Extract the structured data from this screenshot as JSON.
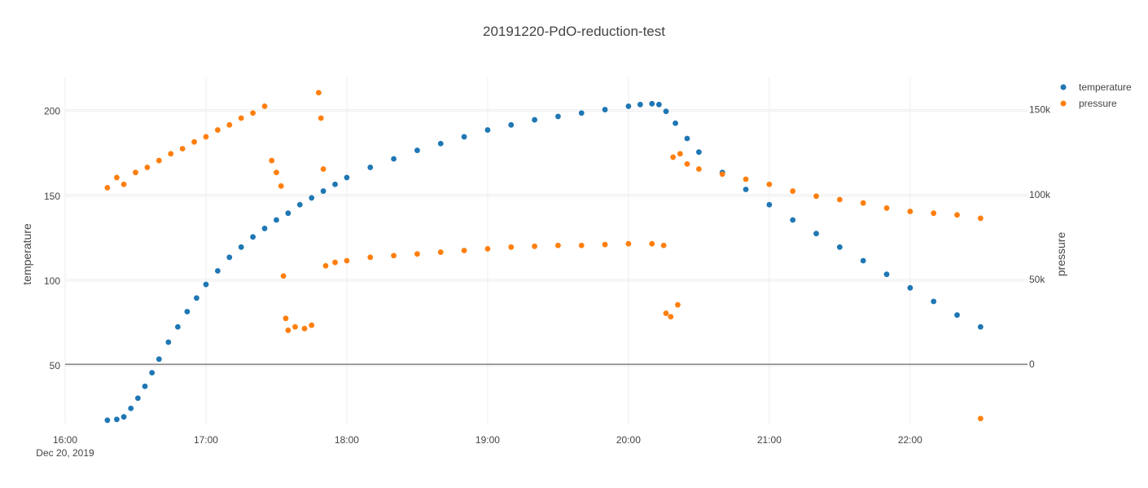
{
  "chart_data": {
    "type": "scatter",
    "title": "20191220-PdO-reduction-test",
    "xlabel": "",
    "ylabel": "temperature",
    "y2label": "pressure",
    "xlim": [
      "2019-12-20 16:00",
      "2019-12-20 22:50"
    ],
    "ylim": [
      16,
      220
    ],
    "y2lim": [
      -35000,
      169000
    ],
    "x_ticks": [
      {
        "value": "2019-12-20 16:00",
        "label": "16:00",
        "sublabel": "Dec 20, 2019"
      },
      {
        "value": "2019-12-20 17:00",
        "label": "17:00"
      },
      {
        "value": "2019-12-20 18:00",
        "label": "18:00"
      },
      {
        "value": "2019-12-20 19:00",
        "label": "19:00"
      },
      {
        "value": "2019-12-20 20:00",
        "label": "20:00"
      },
      {
        "value": "2019-12-20 21:00",
        "label": "21:00"
      },
      {
        "value": "2019-12-20 22:00",
        "label": "22:00"
      }
    ],
    "y_ticks": [
      {
        "value": 50,
        "label": "50"
      },
      {
        "value": 100,
        "label": "100"
      },
      {
        "value": 150,
        "label": "150"
      },
      {
        "value": 200,
        "label": "200"
      }
    ],
    "y2_ticks": [
      {
        "value": 0,
        "label": "0"
      },
      {
        "value": 50000,
        "label": "50k"
      },
      {
        "value": 100000,
        "label": "100k"
      },
      {
        "value": 150000,
        "label": "150k"
      }
    ],
    "grid": true,
    "legend_position": "top-right",
    "series": [
      {
        "name": "temperature",
        "axis": "y",
        "color": "#1f77b4",
        "points": [
          [
            "2019-12-20 16:18",
            18
          ],
          [
            "2019-12-20 16:22",
            18.5
          ],
          [
            "2019-12-20 16:25",
            20
          ],
          [
            "2019-12-20 16:28",
            25
          ],
          [
            "2019-12-20 16:31",
            31
          ],
          [
            "2019-12-20 16:34",
            38
          ],
          [
            "2019-12-20 16:37",
            46
          ],
          [
            "2019-12-20 16:40",
            54
          ],
          [
            "2019-12-20 16:44",
            64
          ],
          [
            "2019-12-20 16:48",
            73
          ],
          [
            "2019-12-20 16:52",
            82
          ],
          [
            "2019-12-20 16:56",
            90
          ],
          [
            "2019-12-20 17:00",
            98
          ],
          [
            "2019-12-20 17:05",
            106
          ],
          [
            "2019-12-20 17:10",
            114
          ],
          [
            "2019-12-20 17:15",
            120
          ],
          [
            "2019-12-20 17:20",
            126
          ],
          [
            "2019-12-20 17:25",
            131
          ],
          [
            "2019-12-20 17:30",
            136
          ],
          [
            "2019-12-20 17:35",
            140
          ],
          [
            "2019-12-20 17:40",
            145
          ],
          [
            "2019-12-20 17:45",
            149
          ],
          [
            "2019-12-20 17:50",
            153
          ],
          [
            "2019-12-20 17:55",
            157
          ],
          [
            "2019-12-20 18:00",
            161
          ],
          [
            "2019-12-20 18:10",
            167
          ],
          [
            "2019-12-20 18:20",
            172
          ],
          [
            "2019-12-20 18:30",
            177
          ],
          [
            "2019-12-20 18:40",
            181
          ],
          [
            "2019-12-20 18:50",
            185
          ],
          [
            "2019-12-20 19:00",
            189
          ],
          [
            "2019-12-20 19:10",
            192
          ],
          [
            "2019-12-20 19:20",
            195
          ],
          [
            "2019-12-20 19:30",
            197
          ],
          [
            "2019-12-20 19:40",
            199
          ],
          [
            "2019-12-20 19:50",
            201
          ],
          [
            "2019-12-20 20:00",
            203
          ],
          [
            "2019-12-20 20:05",
            204
          ],
          [
            "2019-12-20 20:10",
            204.5
          ],
          [
            "2019-12-20 20:13",
            204
          ],
          [
            "2019-12-20 20:16",
            200
          ],
          [
            "2019-12-20 20:20",
            193
          ],
          [
            "2019-12-20 20:25",
            184
          ],
          [
            "2019-12-20 20:30",
            176
          ],
          [
            "2019-12-20 20:40",
            164
          ],
          [
            "2019-12-20 20:50",
            154
          ],
          [
            "2019-12-20 21:00",
            145
          ],
          [
            "2019-12-20 21:10",
            136
          ],
          [
            "2019-12-20 21:20",
            128
          ],
          [
            "2019-12-20 21:30",
            120
          ],
          [
            "2019-12-20 21:40",
            112
          ],
          [
            "2019-12-20 21:50",
            104
          ],
          [
            "2019-12-20 22:00",
            96
          ],
          [
            "2019-12-20 22:10",
            88
          ],
          [
            "2019-12-20 22:20",
            80
          ],
          [
            "2019-12-20 22:30",
            73
          ]
        ]
      },
      {
        "name": "pressure",
        "axis": "y2",
        "color": "#ff7f0e",
        "points": [
          [
            "2019-12-20 16:18",
            104000
          ],
          [
            "2019-12-20 16:22",
            110000
          ],
          [
            "2019-12-20 16:25",
            106000
          ],
          [
            "2019-12-20 16:30",
            113000
          ],
          [
            "2019-12-20 16:35",
            116000
          ],
          [
            "2019-12-20 16:40",
            120000
          ],
          [
            "2019-12-20 16:45",
            124000
          ],
          [
            "2019-12-20 16:50",
            127000
          ],
          [
            "2019-12-20 16:55",
            131000
          ],
          [
            "2019-12-20 17:00",
            134000
          ],
          [
            "2019-12-20 17:05",
            138000
          ],
          [
            "2019-12-20 17:10",
            141000
          ],
          [
            "2019-12-20 17:15",
            145000
          ],
          [
            "2019-12-20 17:20",
            148000
          ],
          [
            "2019-12-20 17:25",
            152000
          ],
          [
            "2019-12-20 17:28",
            120000
          ],
          [
            "2019-12-20 17:30",
            113000
          ],
          [
            "2019-12-20 17:32",
            105000
          ],
          [
            "2019-12-20 17:33",
            52000
          ],
          [
            "2019-12-20 17:34",
            27000
          ],
          [
            "2019-12-20 17:35",
            20000
          ],
          [
            "2019-12-20 17:38",
            22000
          ],
          [
            "2019-12-20 17:42",
            21000
          ],
          [
            "2019-12-20 17:45",
            23000
          ],
          [
            "2019-12-20 17:48",
            160000
          ],
          [
            "2019-12-20 17:49",
            145000
          ],
          [
            "2019-12-20 17:50",
            115000
          ],
          [
            "2019-12-20 17:51",
            58000
          ],
          [
            "2019-12-20 17:55",
            60000
          ],
          [
            "2019-12-20 18:00",
            61000
          ],
          [
            "2019-12-20 18:10",
            63000
          ],
          [
            "2019-12-20 18:20",
            64000
          ],
          [
            "2019-12-20 18:30",
            65000
          ],
          [
            "2019-12-20 18:40",
            66000
          ],
          [
            "2019-12-20 18:50",
            67000
          ],
          [
            "2019-12-20 19:00",
            68000
          ],
          [
            "2019-12-20 19:10",
            69000
          ],
          [
            "2019-12-20 19:20",
            69500
          ],
          [
            "2019-12-20 19:30",
            70000
          ],
          [
            "2019-12-20 19:40",
            70000
          ],
          [
            "2019-12-20 19:50",
            70500
          ],
          [
            "2019-12-20 20:00",
            71000
          ],
          [
            "2019-12-20 20:10",
            71000
          ],
          [
            "2019-12-20 20:15",
            70000
          ],
          [
            "2019-12-20 20:16",
            30000
          ],
          [
            "2019-12-20 20:18",
            28000
          ],
          [
            "2019-12-20 20:21",
            35000
          ],
          [
            "2019-12-20 20:19",
            122000
          ],
          [
            "2019-12-20 20:22",
            124000
          ],
          [
            "2019-12-20 20:25",
            118000
          ],
          [
            "2019-12-20 20:30",
            115000
          ],
          [
            "2019-12-20 20:40",
            112000
          ],
          [
            "2019-12-20 20:50",
            109000
          ],
          [
            "2019-12-20 21:00",
            106000
          ],
          [
            "2019-12-20 21:10",
            102000
          ],
          [
            "2019-12-20 21:20",
            99000
          ],
          [
            "2019-12-20 21:30",
            97000
          ],
          [
            "2019-12-20 21:40",
            95000
          ],
          [
            "2019-12-20 21:50",
            92000
          ],
          [
            "2019-12-20 22:00",
            90000
          ],
          [
            "2019-12-20 22:10",
            89000
          ],
          [
            "2019-12-20 22:20",
            88000
          ],
          [
            "2019-12-20 22:30",
            86000
          ],
          [
            "2019-12-20 22:30",
            -32000
          ]
        ]
      }
    ]
  }
}
